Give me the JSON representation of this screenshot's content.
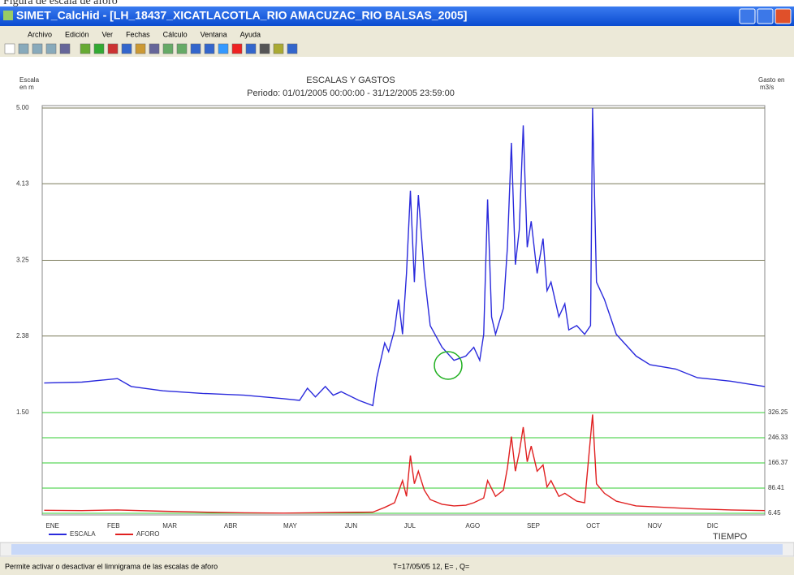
{
  "caption": "Figura de escala de aforo",
  "window": {
    "title": "SIMET_CalcHid - [LH_18437_XICATLACOTLA_RIO AMACUZAC_RIO BALSAS_2005]",
    "menu": [
      "Archivo",
      "Edición",
      "Ver",
      "Fechas",
      "Cálculo",
      "Ventana",
      "Ayuda"
    ],
    "status": [
      "Permite activar o desactivar el limnigrama de las escalas de aforo",
      "T=17/05/05 12, E= , Q="
    ]
  },
  "chart_data": {
    "type": "line",
    "title": "ESCALAS Y GASTOS",
    "subtitle": "Periodo: 01/01/2005 00:00:00 - 31/12/2005 23:59:00",
    "ylabel": [
      "Escala",
      "en m"
    ],
    "y2label": [
      "Gasto en",
      "m3/s"
    ],
    "xlabel": "TIEMPO",
    "xlim": [
      0,
      365
    ],
    "xticks": [
      {
        "value": 1,
        "label": "ENE"
      },
      {
        "value": 32,
        "label": "FEB"
      },
      {
        "value": 60,
        "label": "MAR"
      },
      {
        "value": 91,
        "label": "ABR"
      },
      {
        "value": 121,
        "label": "MAY"
      },
      {
        "value": 152,
        "label": "JUN"
      },
      {
        "value": 182,
        "label": "JUL"
      },
      {
        "value": 213,
        "label": "AGO"
      },
      {
        "value": 244,
        "label": "SEP"
      },
      {
        "value": 274,
        "label": "OCT"
      },
      {
        "value": 305,
        "label": "NOV"
      },
      {
        "value": 335,
        "label": "DIC"
      }
    ],
    "ylim": [
      1.5,
      5.0
    ],
    "yticks": [
      {
        "value": 5,
        "label": "5.00"
      },
      4.13,
      3.25,
      2.38,
      {
        "value": 1.5,
        "label": "1.50"
      }
    ],
    "y2lim": [
      6.45,
      326.25
    ],
    "y2ticks": [
      326.25,
      246.33,
      166.37,
      86.41,
      6.45
    ],
    "grid": true,
    "series": [
      {
        "name": "ESCALA",
        "color": "#2a2adc",
        "x": [
          1,
          20,
          38,
          45,
          61,
          81,
          102,
          122,
          130,
          134,
          138,
          143,
          147,
          151,
          160,
          167,
          169,
          173,
          175,
          178,
          180,
          182,
          184,
          186,
          188,
          190,
          193,
          196,
          202,
          208,
          214,
          218,
          221,
          223,
          225,
          227,
          229,
          233,
          235,
          237,
          239,
          241,
          243,
          245,
          247,
          250,
          253,
          255,
          257,
          261,
          264,
          266,
          270,
          274,
          277,
          278,
          280,
          284,
          290,
          300,
          307,
          315,
          320,
          331,
          340,
          348,
          356,
          365
        ],
        "values": [
          1.84,
          1.85,
          1.89,
          1.8,
          1.75,
          1.72,
          1.7,
          1.66,
          1.64,
          1.78,
          1.68,
          1.8,
          1.7,
          1.74,
          1.64,
          1.58,
          1.9,
          2.3,
          2.2,
          2.45,
          2.8,
          2.4,
          3.1,
          4.05,
          3.0,
          4.0,
          3.1,
          2.5,
          2.25,
          2.1,
          2.15,
          2.25,
          2.1,
          2.4,
          3.95,
          2.6,
          2.4,
          2.7,
          3.4,
          4.6,
          3.2,
          3.6,
          4.8,
          3.4,
          3.7,
          3.1,
          3.5,
          2.9,
          3.0,
          2.6,
          2.75,
          2.45,
          2.5,
          2.4,
          2.5,
          5.0,
          3.0,
          2.8,
          2.4,
          2.15,
          2.05,
          2.02,
          2.0,
          1.9,
          1.88,
          1.86,
          1.83,
          1.8
        ]
      },
      {
        "name": "AFORO",
        "color": "#e02020",
        "axis": "y2",
        "x": [
          1,
          20,
          38,
          61,
          81,
          102,
          122,
          151,
          167,
          173,
          178,
          182,
          184,
          186,
          188,
          190,
          193,
          196,
          202,
          208,
          214,
          218,
          223,
          225,
          229,
          233,
          235,
          237,
          239,
          241,
          243,
          245,
          247,
          250,
          253,
          255,
          257,
          261,
          264,
          270,
          274,
          278,
          280,
          284,
          290,
          300,
          315,
          331,
          348,
          365
        ],
        "values": [
          16,
          15,
          17,
          13,
          10,
          8,
          7,
          9,
          10,
          25,
          40,
          110,
          60,
          190,
          100,
          140,
          80,
          50,
          35,
          30,
          32,
          40,
          55,
          110,
          60,
          80,
          150,
          250,
          140,
          200,
          280,
          170,
          220,
          140,
          160,
          90,
          110,
          60,
          70,
          45,
          40,
          320,
          100,
          70,
          45,
          30,
          25,
          20,
          17,
          15
        ]
      }
    ]
  }
}
